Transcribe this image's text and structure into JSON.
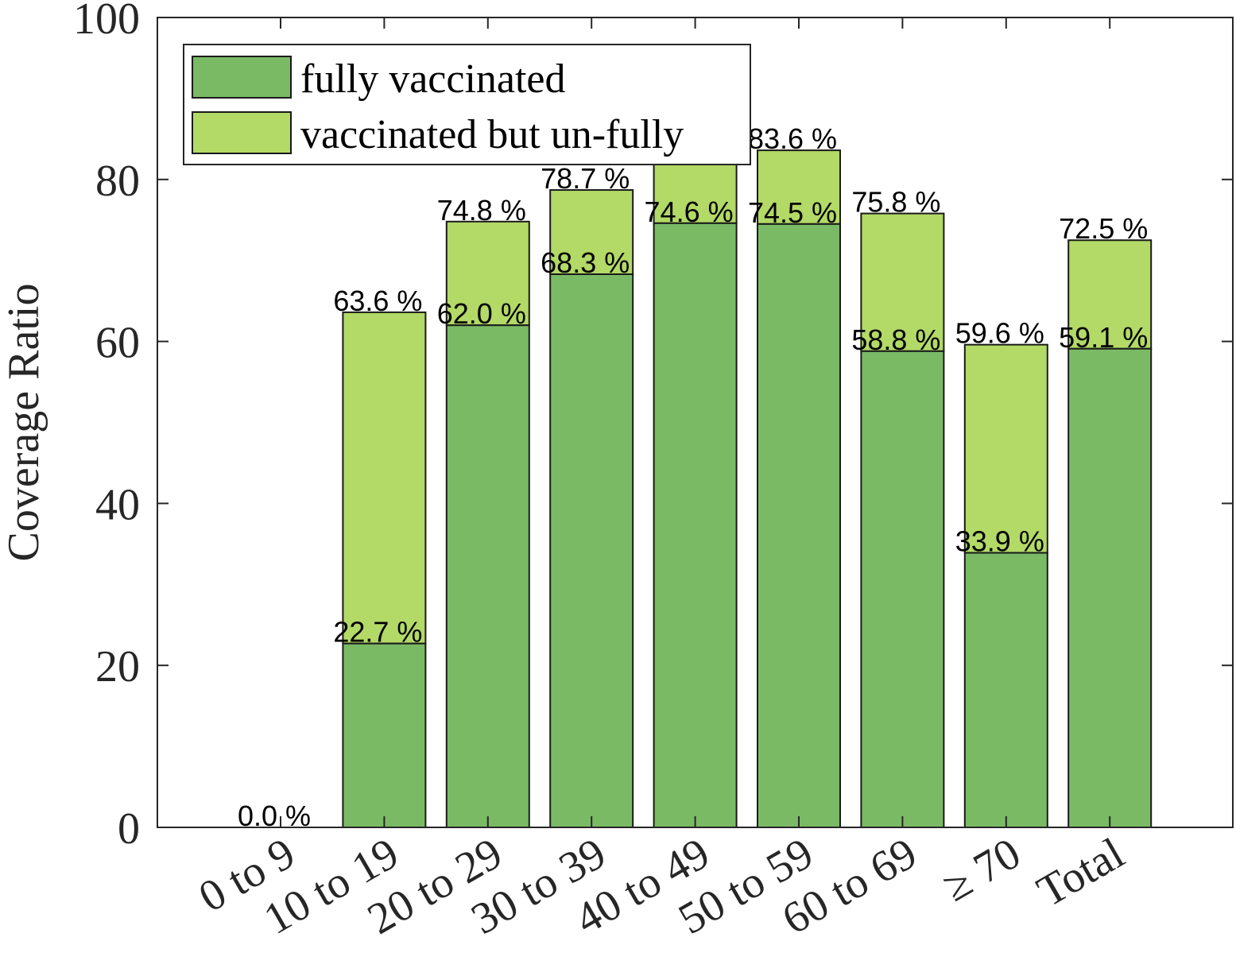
{
  "chart_data": {
    "type": "bar",
    "stacked": true,
    "categories": [
      "0 to 9",
      "10 to 19",
      "20 to 29",
      "30 to 39",
      "40 to 49",
      "50 to 59",
      "60 to 69",
      "≥ 70",
      "Total"
    ],
    "series": [
      {
        "name": "fully vaccinated",
        "color": "#7aba65",
        "values": [
          0.0,
          22.7,
          62.0,
          68.3,
          74.6,
          74.5,
          58.8,
          33.9,
          59.1
        ]
      },
      {
        "name": "vaccinated but un-fully",
        "color": "#b3d966",
        "totals": [
          0.0,
          63.6,
          74.8,
          78.7,
          82.0,
          83.6,
          75.8,
          59.6,
          72.5
        ]
      }
    ],
    "data_labels": {
      "fully": [
        null,
        "22.7 %",
        "62.0 %",
        "68.3 %",
        "74.6 %",
        "74.5 %",
        "58.8 %",
        "33.9 %",
        "59.1 %"
      ],
      "total": [
        "0.0 %",
        "63.6 %",
        "74.8 %",
        "78.7 %",
        null,
        "83.6 %",
        "75.8 %",
        "59.6 %",
        "72.5 %"
      ]
    },
    "ylabel": "Coverage Ratio",
    "ylim": [
      0,
      100
    ],
    "yticks": [
      0,
      20,
      40,
      60,
      80,
      100
    ],
    "grid": false,
    "legend_position": "top-left"
  }
}
